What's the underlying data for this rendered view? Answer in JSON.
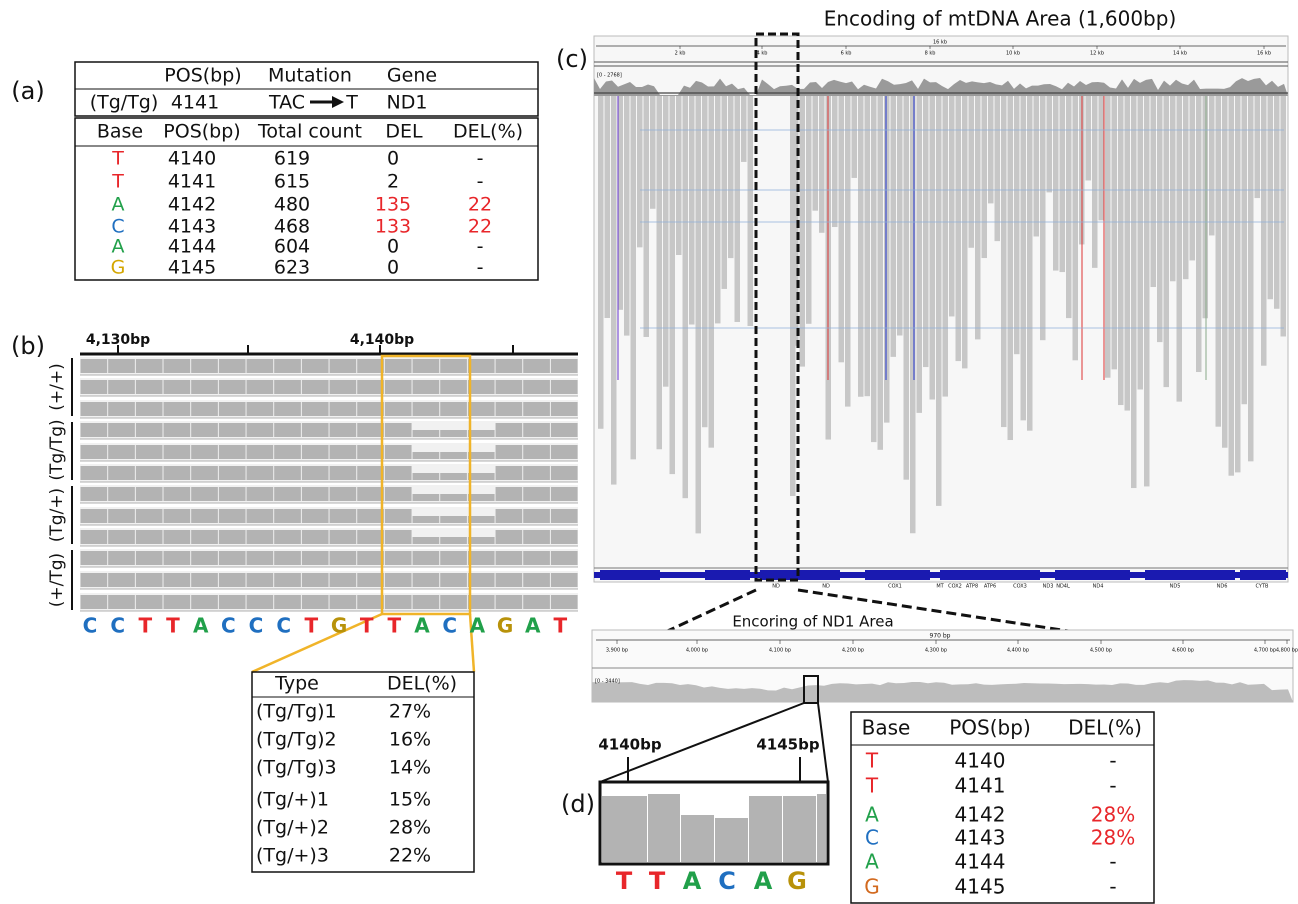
{
  "panel_a": {
    "label": "(a)",
    "mutation_table": {
      "header": [
        "POS(bp)",
        "Mutation",
        "Gene"
      ],
      "row": {
        "genotype": "(Tg/Tg)",
        "pos": 4141,
        "from": "TAC",
        "to": "T",
        "gene": "ND1"
      }
    },
    "count_table": {
      "header": [
        "Base",
        "POS(bp)",
        "Total count",
        "DEL",
        "DEL(%)"
      ],
      "rows": [
        [
          "T",
          4140,
          619,
          0,
          "-"
        ],
        [
          "T",
          4141,
          615,
          2,
          "-"
        ],
        [
          "A",
          4142,
          480,
          135,
          22
        ],
        [
          "C",
          4143,
          468,
          133,
          22
        ],
        [
          "A",
          4144,
          604,
          0,
          "-"
        ],
        [
          "G",
          4145,
          623,
          0,
          "-"
        ]
      ]
    },
    "highlight_rows": [
      2,
      3
    ],
    "highlight_color": "#e8262a"
  },
  "panel_b": {
    "label": "(b)",
    "ruler_labels": [
      "4,130bp",
      "4,140bp"
    ],
    "groups": [
      "(+/+)",
      "(Tg/Tg)",
      "(Tg/+)",
      "(+/Tg)"
    ],
    "sequence": [
      "C",
      "C",
      "T",
      "T",
      "A",
      "C",
      "C",
      "C",
      "T",
      "G",
      "T",
      "T",
      "A",
      "C",
      "A",
      "G",
      "A",
      "T"
    ],
    "del_table": {
      "header": [
        "Type",
        "DEL(%)"
      ],
      "rows": [
        [
          "(Tg/Tg)1",
          "27%"
        ],
        [
          "(Tg/Tg)2",
          "16%"
        ],
        [
          "(Tg/Tg)3",
          "14%"
        ],
        [
          "(Tg/+)1",
          "15%"
        ],
        [
          "(Tg/+)2",
          "28%"
        ],
        [
          "(Tg/+)3",
          "22%"
        ]
      ]
    }
  },
  "panel_c": {
    "label": "(c)",
    "title": "Encoding of mtDNA Area (1,600bp)",
    "genome_length": "16 kb",
    "ruler_ticks": [
      "2 kb",
      "4 kb",
      "6 kb",
      "8 kb",
      "10 kb",
      "12 kb",
      "14 kb",
      "16 kb"
    ],
    "coverage_range": "[0 - 2768]",
    "genes": [
      "ND",
      "ND",
      "COX1",
      "MT",
      "COX2",
      "ATP8",
      "ATP6",
      "COX3",
      "ND3",
      "ND4L",
      "ND4",
      "ND5",
      "ND6",
      "CYTB"
    ],
    "zoom": {
      "title": "Encoring of ND1 Area",
      "span": "970 bp",
      "ruler_ticks": [
        "3,900 bp",
        "4,000 bp",
        "4,100 bp",
        "4,200 bp",
        "4,300 bp",
        "4,400 bp",
        "4,500 bp",
        "4,600 bp",
        "4,700 bp",
        "4,800 bp"
      ],
      "coverage_range": "[0 - 3440]"
    }
  },
  "panel_d": {
    "label": "(d)",
    "markers": [
      "4140bp",
      "4145bp"
    ],
    "sequence": [
      "T",
      "T",
      "A",
      "C",
      "A",
      "G"
    ],
    "table": {
      "header": [
        "Base",
        "POS(bp)",
        "DEL(%)"
      ],
      "rows": [
        [
          "T",
          4140,
          "-"
        ],
        [
          "T",
          4141,
          "-"
        ],
        [
          "A",
          4142,
          "28%"
        ],
        [
          "C",
          4143,
          "28%"
        ],
        [
          "A",
          4144,
          "-"
        ],
        [
          "G",
          4145,
          "-"
        ]
      ]
    },
    "highlight_rows": [
      2,
      3
    ],
    "highlight_color": "#e8262a"
  }
}
